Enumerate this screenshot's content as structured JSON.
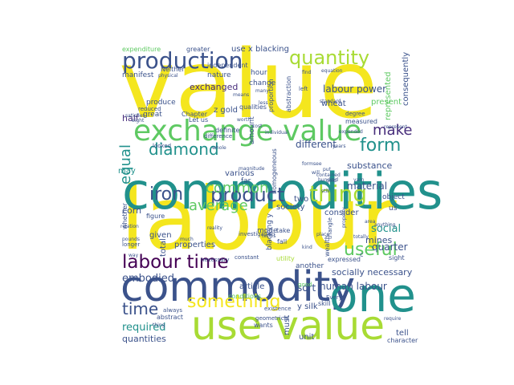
{
  "cloud": {
    "palette": {
      "yellow": "#f4e61e",
      "lime": "#a8db34",
      "green": "#5ec962",
      "teal": "#21918c",
      "blue": "#3b528b",
      "darkblue": "#2c728e",
      "purple": "#440154",
      "indigo": "#472d7b"
    },
    "words": [
      {
        "id": "value",
        "text": "value"
      },
      {
        "id": "labour",
        "text": "labour"
      },
      {
        "id": "commodities",
        "text": "commodities"
      },
      {
        "id": "use-value",
        "text": "use value"
      },
      {
        "id": "commodity",
        "text": "commodity"
      },
      {
        "id": "exchange-value",
        "text": "exchange value"
      },
      {
        "id": "production",
        "text": "production"
      },
      {
        "id": "one",
        "text": "one"
      },
      {
        "id": "quantity",
        "text": "quantity"
      },
      {
        "id": "thing",
        "text": "thing"
      },
      {
        "id": "product",
        "text": "product"
      },
      {
        "id": "labour-time",
        "text": "labour time"
      },
      {
        "id": "diamond",
        "text": "diamond"
      },
      {
        "id": "iron",
        "text": "iron"
      },
      {
        "id": "average",
        "text": "average"
      },
      {
        "id": "something",
        "text": "something"
      },
      {
        "id": "useful",
        "text": "useful"
      },
      {
        "id": "form",
        "text": "form"
      },
      {
        "id": "make",
        "text": "make"
      },
      {
        "id": "equal",
        "text": "equal"
      },
      {
        "id": "common",
        "text": "common"
      },
      {
        "id": "time",
        "text": "time"
      },
      {
        "id": "labour-power",
        "text": "labour power"
      },
      {
        "id": "human-labour",
        "text": "human labour"
      },
      {
        "id": "embodied",
        "text": "embodied"
      },
      {
        "id": "required",
        "text": "required"
      },
      {
        "id": "quantities",
        "text": "quantities"
      },
      {
        "id": "exchanged",
        "text": "exchanged"
      },
      {
        "id": "half",
        "text": "half"
      },
      {
        "id": "corn",
        "text": "corn"
      },
      {
        "id": "different",
        "text": "different"
      },
      {
        "id": "substance",
        "text": "substance"
      },
      {
        "id": "material",
        "text": "material"
      },
      {
        "id": "society",
        "text": "society"
      },
      {
        "id": "sort",
        "text": "sort"
      },
      {
        "id": "consider",
        "text": "consider"
      },
      {
        "id": "social",
        "text": "social"
      },
      {
        "id": "quarter",
        "text": "quarter"
      },
      {
        "id": "socially-necessary",
        "text": "socially necessary"
      },
      {
        "id": "mines",
        "text": "mines"
      },
      {
        "id": "properties",
        "text": "properties"
      },
      {
        "id": "given",
        "text": "given"
      },
      {
        "id": "z-gold",
        "text": "z gold"
      },
      {
        "id": "consequently",
        "text": "consequently"
      },
      {
        "id": "represented",
        "text": "represented"
      },
      {
        "id": "wheat",
        "text": "wheat"
      },
      {
        "id": "various",
        "text": "various"
      },
      {
        "id": "may",
        "text": "may"
      },
      {
        "id": "use-x-blacking",
        "text": "use x blacking"
      },
      {
        "id": "nature",
        "text": "nature"
      },
      {
        "id": "hour",
        "text": "hour"
      },
      {
        "id": "change",
        "text": "change"
      },
      {
        "id": "amount",
        "text": "amount"
      },
      {
        "id": "two",
        "text": "two"
      },
      {
        "id": "object",
        "text": "object"
      },
      {
        "id": "us",
        "text": "us"
      },
      {
        "id": "must",
        "text": "must"
      },
      {
        "id": "another",
        "text": "another"
      },
      {
        "id": "y-silk",
        "text": "y silk"
      },
      {
        "id": "tell",
        "text": "tell"
      },
      {
        "id": "unit",
        "text": "unit"
      },
      {
        "id": "article",
        "text": "article"
      },
      {
        "id": "total",
        "text": "total"
      },
      {
        "id": "mode",
        "text": "mode"
      },
      {
        "id": "blacking-y",
        "text": "blacking y"
      },
      {
        "id": "present",
        "text": "present"
      },
      {
        "id": "produce",
        "text": "produce"
      },
      {
        "id": "manifest",
        "text": "manifest"
      },
      {
        "id": "great",
        "text": "great"
      },
      {
        "id": "expenditure",
        "text": "expenditure"
      },
      {
        "id": "greater",
        "text": "greater"
      },
      {
        "id": "neither",
        "text": "Neither"
      },
      {
        "id": "independent",
        "text": "independent"
      },
      {
        "id": "chapter",
        "text": "Chapter"
      },
      {
        "id": "let-us",
        "text": "Let us"
      },
      {
        "id": "qualities",
        "text": "qualities"
      },
      {
        "id": "definite",
        "text": "definite"
      },
      {
        "id": "far",
        "text": "far"
      },
      {
        "id": "homogeneous",
        "text": "homogeneous"
      },
      {
        "id": "measured",
        "text": "measured"
      },
      {
        "id": "wealth",
        "text": "wealth"
      },
      {
        "id": "proportion",
        "text": "proportion"
      },
      {
        "id": "abstraction",
        "text": "abstraction"
      },
      {
        "id": "character",
        "text": "character"
      },
      {
        "id": "conditions",
        "text": "conditions"
      },
      {
        "id": "wants",
        "text": "wants"
      },
      {
        "id": "always",
        "text": "always"
      },
      {
        "id": "abstract",
        "text": "abstract"
      },
      {
        "id": "every",
        "text": "Every"
      },
      {
        "id": "good",
        "text": "good"
      },
      {
        "id": "skill",
        "text": "skill"
      },
      {
        "id": "utility",
        "text": "utility"
      },
      {
        "id": "expressed",
        "text": "expressed"
      },
      {
        "id": "c",
        "text": "c"
      },
      {
        "id": "sight",
        "text": "sight"
      },
      {
        "id": "figure",
        "text": "figure"
      },
      {
        "id": "whether",
        "text": "whether"
      },
      {
        "id": "looked",
        "text": "looked"
      },
      {
        "id": "difference",
        "text": "difference"
      },
      {
        "id": "investigation",
        "text": "investigation"
      },
      {
        "id": "triangle",
        "text": "triangle"
      },
      {
        "id": "fall",
        "text": "fall"
      },
      {
        "id": "take",
        "text": "take"
      },
      {
        "id": "constant",
        "text": "constant"
      },
      {
        "id": "longer",
        "text": "longer"
      },
      {
        "id": "pounds",
        "text": "pounds"
      },
      {
        "id": "way",
        "text": "way"
      },
      {
        "id": "relation",
        "text": "relation"
      },
      {
        "id": "geometrical",
        "text": "geometrical"
      },
      {
        "id": "existence",
        "text": "existence"
      },
      {
        "id": "necessary",
        "text": "necessary"
      },
      {
        "id": "reduced",
        "text": "reduced"
      },
      {
        "id": "satisfies",
        "text": "satisfies"
      },
      {
        "id": "physical",
        "text": "physical"
      },
      {
        "id": "worth",
        "text": "worth"
      },
      {
        "id": "cost",
        "text": "cost"
      },
      {
        "id": "individual",
        "text": "individual"
      },
      {
        "id": "magnitude",
        "text": "magnitude"
      },
      {
        "id": "contained",
        "text": "contained"
      },
      {
        "id": "gold",
        "text": "gold"
      },
      {
        "id": "put",
        "text": "put"
      },
      {
        "id": "degree",
        "text": "degree"
      },
      {
        "id": "expended",
        "text": "expended"
      },
      {
        "id": "standard",
        "text": "standard"
      },
      {
        "id": "left",
        "text": "left"
      },
      {
        "id": "hundred",
        "text": "hundred"
      },
      {
        "id": "yarn",
        "text": "yarn"
      },
      {
        "id": "totally",
        "text": "totally"
      },
      {
        "id": "property",
        "text": "property"
      },
      {
        "id": "require",
        "text": "require"
      },
      {
        "id": "represent",
        "text": "represent"
      },
      {
        "id": "years",
        "text": "years"
      },
      {
        "id": "find",
        "text": "find"
      },
      {
        "id": "many",
        "text": "many"
      },
      {
        "id": "less",
        "text": "less"
      },
      {
        "id": "reality",
        "text": "reality"
      },
      {
        "id": "terms",
        "text": "terms"
      },
      {
        "id": "place",
        "text": "place"
      },
      {
        "id": "area",
        "text": "area"
      },
      {
        "id": "anything",
        "text": "anything"
      },
      {
        "id": "thing-small",
        "text": "thing"
      },
      {
        "id": "much",
        "text": "much"
      },
      {
        "id": "eight",
        "text": "eight"
      },
      {
        "id": "equation",
        "text": "equation"
      },
      {
        "id": "kind",
        "text": "kind"
      },
      {
        "id": "means",
        "text": "means"
      },
      {
        "id": "see",
        "text": "see"
      },
      {
        "id": "form-small",
        "text": "form"
      },
      {
        "id": "will",
        "text": "will"
      },
      {
        "id": "still",
        "text": "still"
      },
      {
        "id": "whole",
        "text": "whole"
      }
    ]
  }
}
